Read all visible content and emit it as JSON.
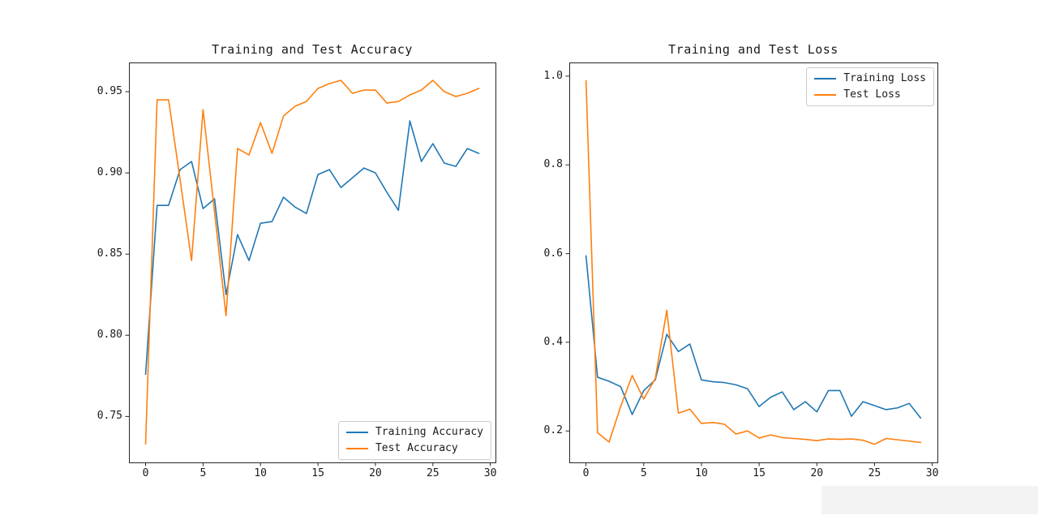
{
  "figure": {
    "background": "#ffffff",
    "spine_color": "#262626",
    "text_color": "#1a1a1a",
    "legend_border_color": "#cccccc",
    "watermark_color": "#f3f3f3"
  },
  "chart_data": [
    {
      "type": "line",
      "title": "Training and Test Accuracy",
      "xlabel": "",
      "ylabel": "",
      "grid": false,
      "x": [
        0,
        1,
        2,
        3,
        4,
        5,
        6,
        7,
        8,
        9,
        10,
        11,
        12,
        13,
        14,
        15,
        16,
        17,
        18,
        19,
        20,
        21,
        22,
        23,
        24,
        25,
        26,
        27,
        28,
        29
      ],
      "series": [
        {
          "name": "Training Accuracy",
          "color": "#1f77b4",
          "values": [
            0.776,
            0.88,
            0.88,
            0.902,
            0.907,
            0.878,
            0.884,
            0.825,
            0.862,
            0.846,
            0.869,
            0.87,
            0.885,
            0.879,
            0.875,
            0.899,
            0.902,
            0.891,
            0.897,
            0.903,
            0.9,
            0.888,
            0.877,
            0.932,
            0.907,
            0.918,
            0.906,
            0.904,
            0.915,
            0.912
          ]
        },
        {
          "name": "Test Accuracy",
          "color": "#ff7f0e",
          "values": [
            0.733,
            0.945,
            0.945,
            0.896,
            0.846,
            0.939,
            0.876,
            0.812,
            0.915,
            0.911,
            0.931,
            0.912,
            0.935,
            0.941,
            0.944,
            0.952,
            0.955,
            0.957,
            0.949,
            0.951,
            0.951,
            0.943,
            0.944,
            0.948,
            0.951,
            0.957,
            0.95,
            0.947,
            0.949,
            0.952
          ]
        }
      ],
      "xlim": [
        -1.45,
        30.45
      ],
      "ylim": [
        0.7217,
        0.968
      ],
      "xticks": [
        0,
        5,
        10,
        15,
        20,
        25,
        30
      ],
      "xtick_labels": [
        "0",
        "5",
        "10",
        "15",
        "20",
        "25",
        "30"
      ],
      "yticks": [
        0.75,
        0.8,
        0.85,
        0.9,
        0.95
      ],
      "ytick_labels": [
        "0.75",
        "0.80",
        "0.85",
        "0.90",
        "0.95"
      ],
      "legend_position": "lower right"
    },
    {
      "type": "line",
      "title": "Training and Test Loss",
      "xlabel": "",
      "ylabel": "",
      "grid": false,
      "x": [
        0,
        1,
        2,
        3,
        4,
        5,
        6,
        7,
        8,
        9,
        10,
        11,
        12,
        13,
        14,
        15,
        16,
        17,
        18,
        19,
        20,
        21,
        22,
        23,
        24,
        25,
        26,
        27,
        28,
        29
      ],
      "series": [
        {
          "name": "Training Loss",
          "color": "#1f77b4",
          "values": [
            0.595,
            0.321,
            0.312,
            0.3,
            0.237,
            0.291,
            0.315,
            0.418,
            0.379,
            0.396,
            0.315,
            0.311,
            0.309,
            0.304,
            0.295,
            0.255,
            0.276,
            0.288,
            0.248,
            0.266,
            0.243,
            0.291,
            0.291,
            0.233,
            0.266,
            0.257,
            0.248,
            0.252,
            0.262,
            0.229
          ]
        },
        {
          "name": "Test Loss",
          "color": "#ff7f0e",
          "values": [
            0.99,
            0.196,
            0.175,
            0.255,
            0.325,
            0.272,
            0.318,
            0.472,
            0.24,
            0.249,
            0.217,
            0.219,
            0.215,
            0.193,
            0.2,
            0.184,
            0.191,
            0.185,
            0.183,
            0.181,
            0.178,
            0.182,
            0.181,
            0.182,
            0.179,
            0.17,
            0.183,
            0.18,
            0.177,
            0.174
          ]
        }
      ],
      "xlim": [
        -1.45,
        30.45
      ],
      "ylim": [
        0.129,
        1.031
      ],
      "xticks": [
        0,
        5,
        10,
        15,
        20,
        25,
        30
      ],
      "xtick_labels": [
        "0",
        "5",
        "10",
        "15",
        "20",
        "25",
        "30"
      ],
      "yticks": [
        0.2,
        0.4,
        0.6,
        0.8,
        1.0
      ],
      "ytick_labels": [
        "0.2",
        "0.4",
        "0.6",
        "0.8",
        "1.0"
      ],
      "legend_position": "upper right"
    }
  ]
}
